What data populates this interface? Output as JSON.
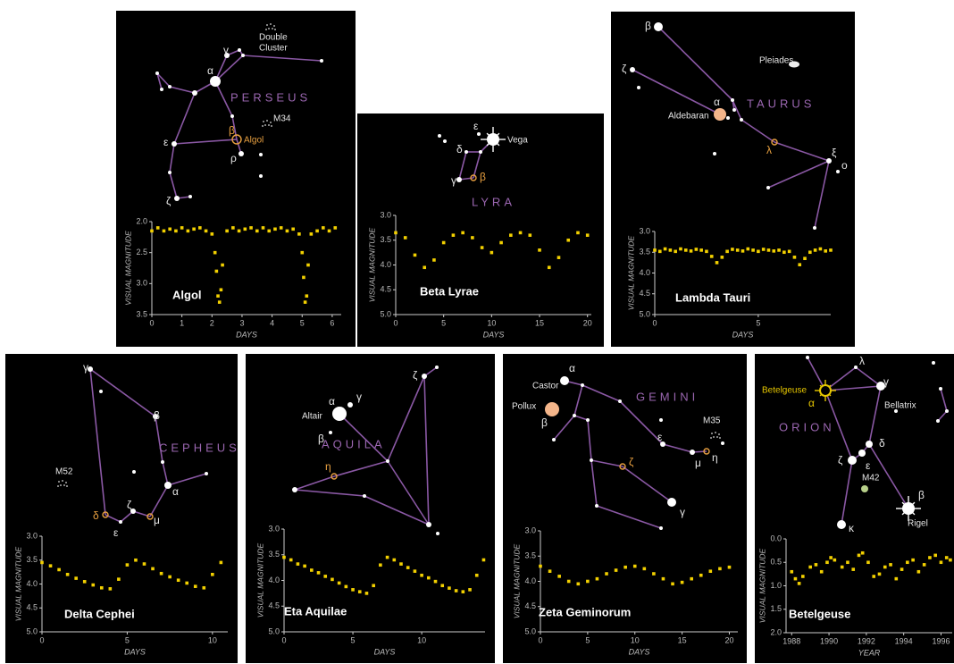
{
  "chart_data": [
    {
      "type": "scatter",
      "title": "Algol",
      "xlabel": "DAYS",
      "ylabel": "VISUAL MAGNITUDE",
      "annotations": [
        "α",
        "γ",
        "β",
        "Algol",
        "ε",
        "ρ",
        "ζ",
        "PERSEUS",
        "M34",
        "Double",
        "Cluster"
      ],
      "x": [
        0,
        0.2,
        0.4,
        0.6,
        0.8,
        1.0,
        1.2,
        1.4,
        1.6,
        1.8,
        2.0,
        2.1,
        2.15,
        2.2,
        2.25,
        2.3,
        2.35,
        2.5,
        2.7,
        2.9,
        3.1,
        3.3,
        3.5,
        3.7,
        3.9,
        4.1,
        4.3,
        4.5,
        4.7,
        4.9,
        5.0,
        5.05,
        5.1,
        5.15,
        5.2,
        5.3,
        5.5,
        5.7,
        5.9,
        6.1
      ],
      "values": [
        2.15,
        2.1,
        2.15,
        2.12,
        2.15,
        2.1,
        2.15,
        2.12,
        2.1,
        2.15,
        2.2,
        2.5,
        2.8,
        3.2,
        3.3,
        3.1,
        2.7,
        2.15,
        2.1,
        2.15,
        2.12,
        2.1,
        2.15,
        2.1,
        2.15,
        2.12,
        2.1,
        2.15,
        2.12,
        2.2,
        2.5,
        2.9,
        3.3,
        3.2,
        2.7,
        2.2,
        2.15,
        2.1,
        2.15,
        2.1
      ],
      "xlim": [
        0,
        6.3
      ],
      "ylim": [
        2.0,
        3.5
      ],
      "y_inverted": true,
      "xticks": [
        0,
        1,
        2,
        3,
        4,
        5,
        6
      ],
      "yticks": [
        {
          "value": 2,
          "label": "2.0"
        },
        2.5,
        {
          "value": 3,
          "label": "3.0"
        },
        3.5
      ],
      "color": "#f2d000"
    },
    {
      "type": "scatter",
      "title": "Beta Lyrae",
      "xlabel": "DAYS",
      "ylabel": "VISUAL MAGNITUDE",
      "annotations": [
        "ε",
        "δ",
        "γ",
        "β",
        "Vega",
        "LYRA"
      ],
      "x": [
        0,
        1,
        2,
        3,
        4,
        5,
        6,
        7,
        8,
        9,
        10,
        11,
        12,
        13,
        14,
        15,
        16,
        17,
        18,
        19,
        20
      ],
      "values": [
        3.35,
        3.45,
        3.8,
        4.05,
        3.9,
        3.55,
        3.4,
        3.35,
        3.45,
        3.65,
        3.75,
        3.55,
        3.4,
        3.35,
        3.4,
        3.7,
        4.05,
        3.85,
        3.5,
        3.35,
        3.4
      ],
      "xlim": [
        0,
        20.4
      ],
      "ylim": [
        3.0,
        5.0
      ],
      "y_inverted": true,
      "xticks": [
        0,
        5,
        10,
        15,
        20
      ],
      "yticks": [
        {
          "value": 3,
          "label": "3.0"
        },
        3.5,
        {
          "value": 4,
          "label": "4.0"
        },
        4.5,
        {
          "value": 5,
          "label": "5.0"
        }
      ],
      "color": "#f2d000"
    },
    {
      "type": "scatter",
      "title": "Lambda Tauri",
      "xlabel": "DAYS",
      "ylabel": "VISUAL MAGNITUDE",
      "annotations": [
        "β",
        "ζ",
        "Pleiades",
        "α",
        "Aldebaran",
        "TAURUS",
        "λ",
        "ξ",
        "ο"
      ],
      "x": [
        0,
        0.25,
        0.5,
        0.75,
        1,
        1.25,
        1.5,
        1.75,
        2,
        2.25,
        2.5,
        2.75,
        3,
        3.25,
        3.5,
        3.75,
        4,
        4.25,
        4.5,
        4.75,
        5,
        5.25,
        5.5,
        5.75,
        6,
        6.25,
        6.5,
        6.75,
        7,
        7.25,
        7.5,
        7.75,
        8,
        8.25,
        8.5
      ],
      "values": [
        3.45,
        3.48,
        3.42,
        3.45,
        3.48,
        3.42,
        3.45,
        3.47,
        3.43,
        3.45,
        3.48,
        3.6,
        3.75,
        3.62,
        3.48,
        3.43,
        3.45,
        3.47,
        3.42,
        3.45,
        3.48,
        3.43,
        3.45,
        3.47,
        3.45,
        3.5,
        3.48,
        3.62,
        3.8,
        3.65,
        3.5,
        3.45,
        3.42,
        3.47,
        3.45
      ],
      "xlim": [
        0,
        8.5
      ],
      "ylim": [
        3.0,
        5.0
      ],
      "y_inverted": true,
      "xticks": [
        0,
        5
      ],
      "yticks": [
        {
          "value": 3,
          "label": "3.0"
        },
        3.5,
        {
          "value": 4,
          "label": "4.0"
        },
        4.5,
        {
          "value": 5,
          "label": "5.0"
        }
      ],
      "color": "#f2d000"
    },
    {
      "type": "scatter",
      "title": "Delta Cephei",
      "xlabel": "DAYS",
      "ylabel": "VISUAL MAGNITUDE",
      "annotations": [
        "γ",
        "β",
        "CEPHEUS",
        "M52",
        "α",
        "ζ",
        "μ",
        "ε",
        "δ"
      ],
      "x": [
        0,
        0.5,
        1,
        1.5,
        2,
        2.5,
        3,
        3.5,
        4,
        4.5,
        5,
        5.5,
        6,
        6.5,
        7,
        7.5,
        8,
        8.5,
        9,
        9.5,
        10,
        10.5
      ],
      "values": [
        3.55,
        3.62,
        3.7,
        3.8,
        3.88,
        3.95,
        4.02,
        4.08,
        4.1,
        3.9,
        3.6,
        3.5,
        3.58,
        3.68,
        3.78,
        3.85,
        3.92,
        3.98,
        4.05,
        4.08,
        3.8,
        3.55
      ],
      "xlim": [
        0,
        10.9
      ],
      "ylim": [
        3.0,
        5.0
      ],
      "y_inverted": true,
      "xticks": [
        0,
        5,
        10
      ],
      "yticks": [
        {
          "value": 3,
          "label": "3.0"
        },
        3.5,
        {
          "value": 4,
          "label": "4.0"
        },
        4.5,
        {
          "value": 5,
          "label": "5.0"
        }
      ],
      "color": "#f2d000"
    },
    {
      "type": "scatter",
      "title": "Eta Aquilae",
      "xlabel": "DAYS",
      "ylabel": "VISUAL MAGNITUDE",
      "annotations": [
        "ζ",
        "α",
        "γ",
        "Altair",
        "β",
        "η",
        "AQUILA"
      ],
      "x": [
        0,
        0.5,
        1,
        1.5,
        2,
        2.5,
        3,
        3.5,
        4,
        4.5,
        5,
        5.5,
        6,
        6.5,
        7,
        7.5,
        8,
        8.5,
        9,
        9.5,
        10,
        10.5,
        11,
        11.5,
        12,
        12.5,
        13,
        13.5,
        14,
        14.5
      ],
      "values": [
        3.55,
        3.6,
        3.68,
        3.72,
        3.8,
        3.85,
        3.92,
        3.98,
        4.05,
        4.12,
        4.18,
        4.22,
        4.25,
        4.1,
        3.7,
        3.55,
        3.6,
        3.68,
        3.75,
        3.82,
        3.9,
        3.95,
        4.02,
        4.1,
        4.15,
        4.2,
        4.22,
        4.18,
        3.9,
        3.6
      ],
      "xlim": [
        0,
        14.6
      ],
      "ylim": [
        3.0,
        5.0
      ],
      "y_inverted": true,
      "xticks": [
        0,
        5,
        10
      ],
      "yticks": [
        {
          "value": 3,
          "label": "3.0"
        },
        3.5,
        {
          "value": 4,
          "label": "4.0"
        },
        4.5,
        {
          "value": 5,
          "label": "5.0"
        }
      ],
      "color": "#f2d000"
    },
    {
      "type": "scatter",
      "title": "Zeta Geminorum",
      "xlabel": "DAYS",
      "ylabel": "VISUAL MAGNITUDE",
      "annotations": [
        "α",
        "Castor",
        "Pollux",
        "β",
        "GEMINI",
        "ε",
        "M35",
        "μ",
        "η",
        "ζ",
        "γ"
      ],
      "x": [
        0,
        1,
        2,
        3,
        4,
        5,
        6,
        7,
        8,
        9,
        10,
        11,
        12,
        13,
        14,
        15,
        16,
        17,
        18,
        19,
        20
      ],
      "values": [
        3.7,
        3.8,
        3.9,
        4.0,
        4.05,
        4.0,
        3.95,
        3.85,
        3.78,
        3.72,
        3.7,
        3.75,
        3.85,
        3.95,
        4.05,
        4.02,
        3.95,
        3.88,
        3.8,
        3.75,
        3.72
      ],
      "xlim": [
        0,
        20.9
      ],
      "ylim": [
        3.0,
        5.0
      ],
      "y_inverted": true,
      "xticks": [
        0,
        5,
        10,
        15,
        20
      ],
      "yticks": [
        {
          "value": 3,
          "label": "3.0"
        },
        3.5,
        {
          "value": 4,
          "label": "4.0"
        },
        4.5,
        {
          "value": 5,
          "label": "5.0"
        }
      ],
      "color": "#f2d000"
    },
    {
      "type": "scatter",
      "title": "Betelgeuse",
      "xlabel": "YEAR",
      "ylabel": "VISUAL MAGNITUDE",
      "annotations": [
        "λ",
        "Betelgeuse",
        "α",
        "γ",
        "Bellatrix",
        "ORION",
        "δ",
        "ζ",
        "ε",
        "M42",
        "κ",
        "β",
        "Rigel"
      ],
      "x": [
        1988.0,
        1988.2,
        1988.4,
        1988.6,
        1989.0,
        1989.3,
        1989.6,
        1989.9,
        1990.1,
        1990.3,
        1990.7,
        1991.0,
        1991.3,
        1991.6,
        1991.8,
        1992.1,
        1992.4,
        1992.7,
        1993.0,
        1993.3,
        1993.6,
        1993.9,
        1994.2,
        1994.5,
        1994.8,
        1995.1,
        1995.4,
        1995.7,
        1996.0,
        1996.3,
        1996.5
      ],
      "values": [
        0.7,
        0.85,
        0.95,
        0.8,
        0.6,
        0.55,
        0.7,
        0.5,
        0.4,
        0.45,
        0.6,
        0.5,
        0.65,
        0.35,
        0.3,
        0.5,
        0.8,
        0.75,
        0.6,
        0.55,
        0.85,
        0.65,
        0.5,
        0.45,
        0.7,
        0.55,
        0.4,
        0.35,
        0.5,
        0.4,
        0.45
      ],
      "xlim": [
        1987.7,
        1996.6
      ],
      "ylim": [
        0.0,
        2.0
      ],
      "y_inverted": true,
      "xticks": [
        1988,
        1990,
        1992,
        1994,
        1996
      ],
      "yticks": [
        {
          "value": 0,
          "label": "0.0"
        },
        0.5,
        {
          "value": 1,
          "label": "1.0"
        },
        1.5,
        {
          "value": 2,
          "label": "2.0"
        }
      ],
      "color": "#f2d000"
    }
  ]
}
